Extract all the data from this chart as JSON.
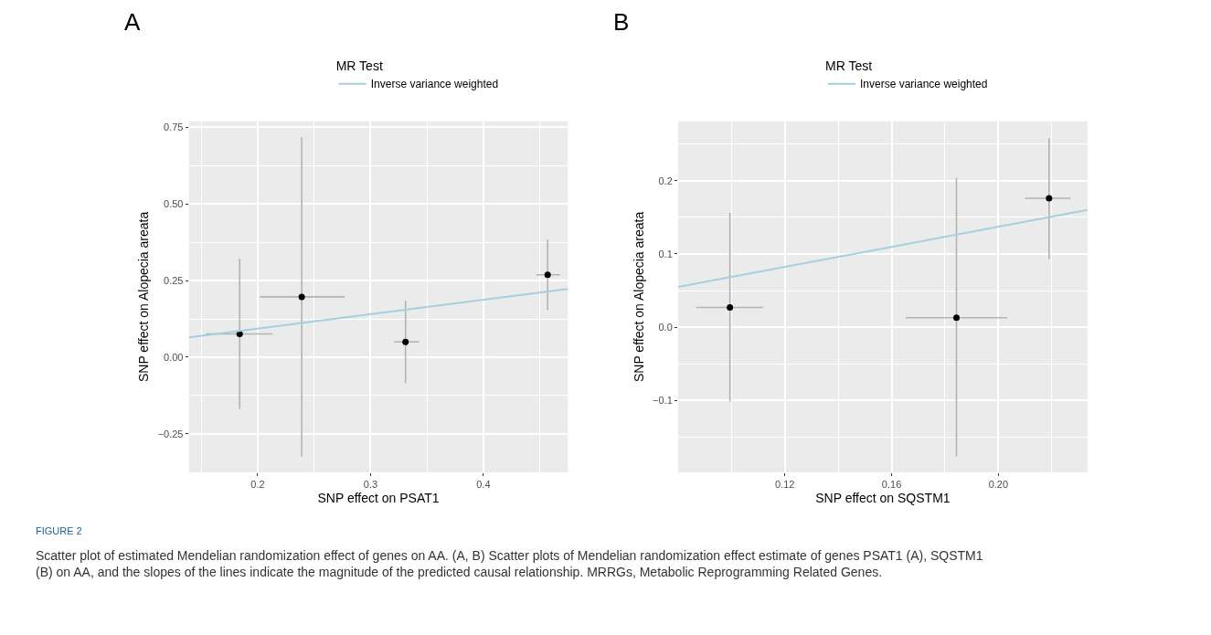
{
  "chart_data": [
    {
      "type": "scatter",
      "xlabel": "SNP effect on PSAT1",
      "ylabel": "SNP effect on Alopecia areata",
      "legend_title": "MR Test",
      "legend": "top",
      "annotations": [
        "A",
        "FIGURE 2",
        "Scatter plot of estimated Mendelian randomization effect of genes on AA. (A, B) Scatter plots of Mendelian randomization effect estimate of genes PSAT1 (A), SQSTM1 (B) on AA, and the slopes of the lines indicate the magnitude of the predicted causal relationship. MRRGs, Metabolic Reprogramming Related Genes."
      ],
      "xlim": [
        0.139,
        0.475
      ],
      "xticks": [
        0.2,
        0.3,
        0.4
      ],
      "ylim": [
        -0.376,
        0.77
      ],
      "yticks": [
        {
          "value": -0.25,
          "label": "−0.25"
        },
        {
          "value": 0,
          "label": "0.00"
        },
        0.25,
        {
          "value": 0.5,
          "label": "0.50"
        },
        0.75
      ],
      "grid": true,
      "series": [
        {
          "marker": "circle",
          "color": "#000000",
          "x": [
            0.184,
            0.239,
            0.331,
            0.457
          ],
          "values": [
            0.076,
            0.197,
            0.05,
            0.269
          ],
          "errors": [
            [
              -0.169,
              0.322
            ],
            [
              -0.324,
              0.718
            ],
            [
              -0.085,
              0.184
            ],
            [
              0.154,
              0.384
            ]
          ],
          "xerrors": [
            [
              0.154,
              0.213
            ],
            [
              0.202,
              0.277
            ],
            [
              0.321,
              0.343
            ],
            [
              0.447,
              0.468
            ]
          ]
        },
        {
          "type": "line",
          "name": "Inverse variance weighted",
          "color": "#a6cee3",
          "x": [
            0.139,
            0.475
          ],
          "values": [
            0.065,
            0.223
          ]
        }
      ]
    },
    {
      "type": "scatter",
      "xlabel": "SNP effect on SQSTM1",
      "ylabel": "SNP effect on Alopecia areata",
      "legend_title": "MR Test",
      "legend": "top",
      "annotations": [
        "B"
      ],
      "xlim": [
        0.08,
        0.2334
      ],
      "xticks": [
        0.12,
        0.16,
        {
          "value": 0.2,
          "label": "0.20"
        }
      ],
      "ylim": [
        -0.198,
        0.281
      ],
      "yticks": [
        {
          "value": -0.1,
          "label": "−0.1"
        },
        {
          "value": 0,
          "label": "0.0"
        },
        0.1,
        0.2
      ],
      "grid": true,
      "series": [
        {
          "marker": "circle",
          "color": "#000000",
          "x": [
            0.0994,
            0.1843,
            0.219
          ],
          "values": [
            0.027,
            0.013,
            0.176
          ],
          "errors": [
            [
              -0.101,
              0.156
            ],
            [
              -0.176,
              0.204
            ],
            [
              0.093,
              0.258
            ]
          ],
          "xerrors": [
            [
              0.0868,
              0.1118
            ],
            [
              0.1653,
              0.2033
            ],
            [
              0.21,
              0.227
            ]
          ]
        },
        {
          "type": "line",
          "name": "Inverse variance weighted",
          "color": "#a6cee3",
          "x": [
            0.08,
            0.2334
          ],
          "values": [
            0.055,
            0.16
          ]
        }
      ]
    }
  ]
}
